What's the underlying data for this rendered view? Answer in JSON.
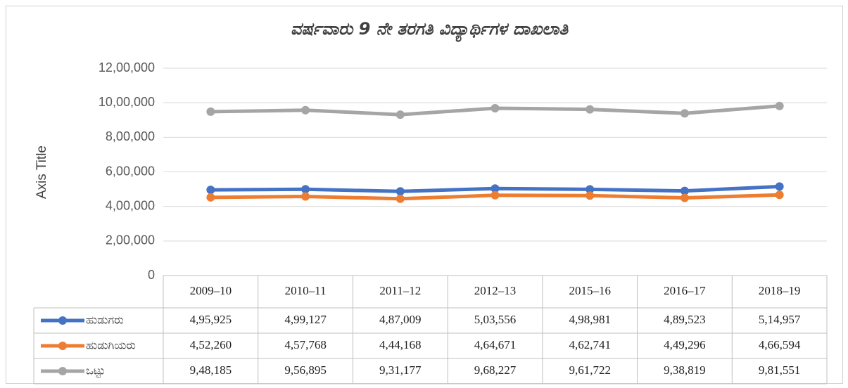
{
  "chart_data": {
    "type": "line",
    "title": "ವರ್ಷವಾರು  9 ನೇ ತರಗತಿ ವಿದ್ಯಾರ್ಥಿಗಳ ದಾಖಲಾತಿ",
    "y_label": "Axis Title",
    "categories": [
      "2009–10",
      "2010–11",
      "2011–12",
      "2012–13",
      "2015–16",
      "2016–17",
      "2018–19"
    ],
    "series": [
      {
        "name": "ಹುಡುಗರು",
        "color": "#4472c4",
        "values": [
          495925,
          499127,
          487009,
          503556,
          498981,
          489523,
          514957
        ],
        "value_labels": [
          "4,95,925",
          "4,99,127",
          "4,87,009",
          "5,03,556",
          "4,98,981",
          "4,89,523",
          "5,14,957"
        ]
      },
      {
        "name": "ಹುಡುಗಿಯರು",
        "color": "#ed7d31",
        "values": [
          452260,
          457768,
          444168,
          464671,
          462741,
          449296,
          466594
        ],
        "value_labels": [
          "4,52,260",
          "4,57,768",
          "4,44,168",
          "4,64,671",
          "4,62,741",
          "4,49,296",
          "4,66,594"
        ]
      },
      {
        "name": "ಒಟ್ಟು",
        "color": "#a5a5a5",
        "values": [
          948185,
          956895,
          931177,
          968227,
          961722,
          938819,
          981551
        ],
        "value_labels": [
          "9,48,185",
          "9,56,895",
          "9,31,177",
          "9,68,227",
          "9,61,722",
          "9,38,819",
          "9,81,551"
        ]
      }
    ],
    "ylim": [
      0,
      1200000
    ],
    "yticks": [
      0,
      {
        "value": 200000,
        "label": "2,00,000"
      },
      {
        "value": 400000,
        "label": "4,00,000"
      },
      {
        "value": 600000,
        "label": "6,00,000"
      },
      {
        "value": 800000,
        "label": "8,00,000"
      },
      {
        "value": 1000000,
        "label": "10,00,000"
      },
      {
        "value": 1200000,
        "label": "12,00,000"
      }
    ],
    "grid": true,
    "data_table": true
  }
}
